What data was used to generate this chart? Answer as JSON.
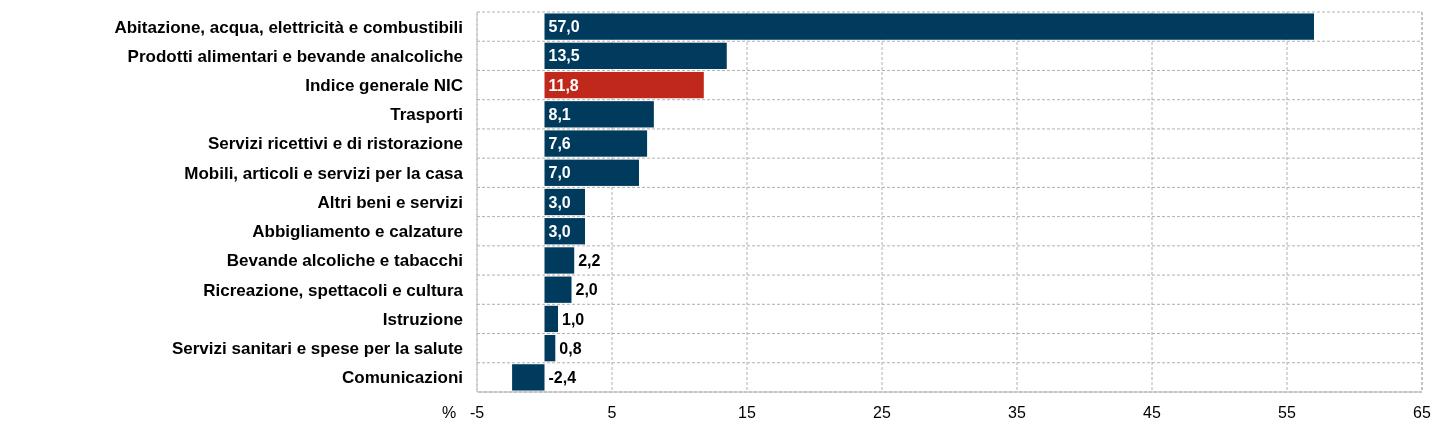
{
  "chart_data": {
    "type": "bar",
    "orientation": "horizontal",
    "xlabel": "%",
    "categories": [
      "Abitazione, acqua, elettricità e combustibili",
      "Prodotti alimentari e bevande analcoliche",
      "Indice generale NIC",
      "Trasporti",
      "Servizi ricettivi e di ristorazione",
      "Mobili, articoli e servizi per la casa",
      "Altri beni e servizi",
      "Abbigliamento e calzature",
      "Bevande alcoliche e tabacchi",
      "Ricreazione, spettacoli e cultura",
      "Istruzione",
      "Servizi sanitari e spese per la salute",
      "Comunicazioni"
    ],
    "values": [
      57.0,
      13.5,
      11.8,
      8.1,
      7.6,
      7.0,
      3.0,
      3.0,
      2.2,
      2.0,
      1.0,
      0.8,
      -2.4
    ],
    "value_labels": [
      "57,0",
      "13,5",
      "11,8",
      "8,1",
      "7,6",
      "7,0",
      "3,0",
      "3,0",
      "2,2",
      "2,0",
      "1,0",
      "0,8",
      "-2,4"
    ],
    "colors": [
      "#003a5c",
      "#003a5c",
      "#c0281c",
      "#003a5c",
      "#003a5c",
      "#003a5c",
      "#003a5c",
      "#003a5c",
      "#003a5c",
      "#003a5c",
      "#003a5c",
      "#003a5c",
      "#003a5c"
    ],
    "xlim": [
      -5,
      65
    ],
    "xticks": [
      -5,
      5,
      15,
      25,
      35,
      45,
      55,
      65
    ],
    "grid": true
  }
}
